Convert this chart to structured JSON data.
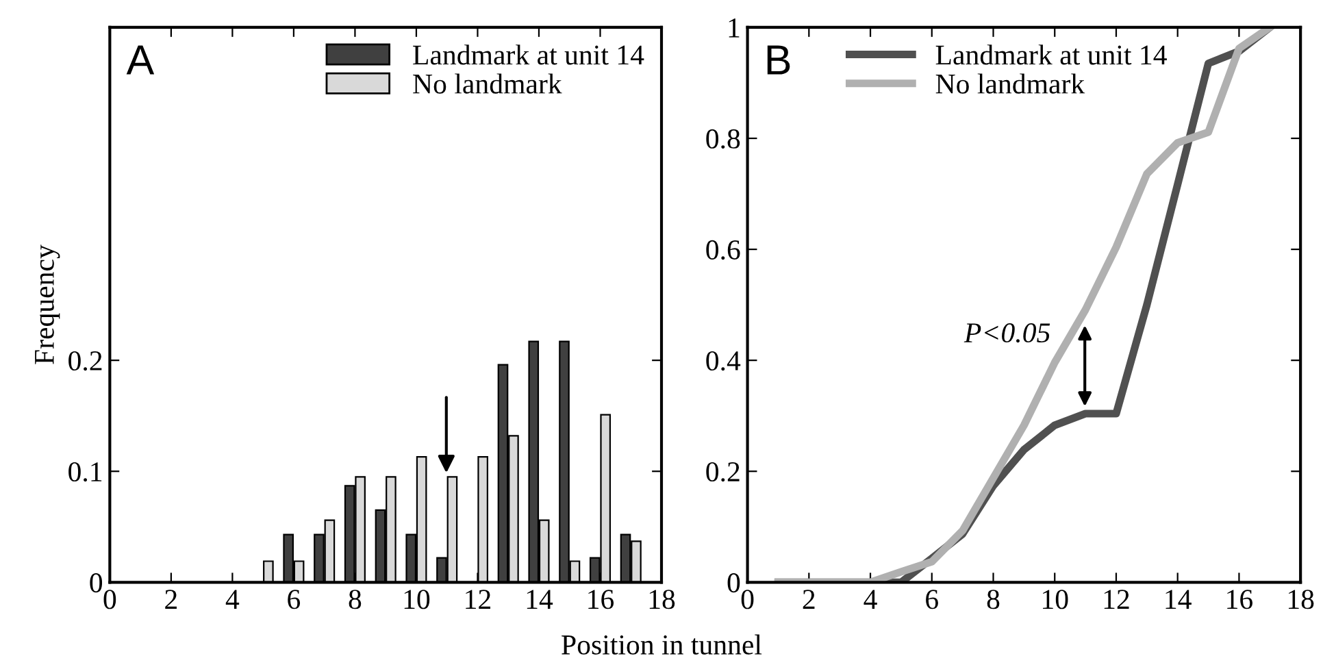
{
  "chart_data": [
    {
      "type": "bar",
      "title": "A",
      "xlabel": "Position in tunnel",
      "ylabel": "Frequency",
      "x": [
        1,
        2,
        3,
        4,
        5,
        6,
        7,
        8,
        9,
        10,
        11,
        12,
        13,
        14,
        15,
        16,
        17
      ],
      "series": [
        {
          "name": "Landmark at unit 14",
          "color": "#404040",
          "values": [
            0,
            0,
            0,
            0,
            0,
            0.043,
            0.043,
            0.087,
            0.065,
            0.043,
            0.022,
            0,
            0.196,
            0.217,
            0.217,
            0.022,
            0.043
          ]
        },
        {
          "name": "No landmark",
          "color": "#d9d9d9",
          "values": [
            0,
            0,
            0,
            0,
            0.019,
            0.019,
            0.056,
            0.095,
            0.095,
            0.113,
            0.095,
            0.113,
            0.132,
            0.056,
            0.019,
            0.151,
            0.037
          ]
        }
      ],
      "xlim": [
        0,
        18
      ],
      "xticks": [
        0,
        2,
        4,
        6,
        8,
        10,
        12,
        14,
        16,
        18
      ],
      "ylim": [
        0,
        0.5
      ],
      "yticks": [
        0,
        0.1,
        0.2
      ],
      "legend": "top right",
      "grid": false
    },
    {
      "type": "line",
      "title": "B",
      "x": [
        1,
        2,
        3,
        4,
        5,
        6,
        7,
        8,
        9,
        10,
        11,
        12,
        13,
        14,
        15,
        16,
        17
      ],
      "series": [
        {
          "name": "Landmark at unit 14",
          "color": "#505050",
          "values": [
            0,
            0,
            0,
            0,
            0,
            0.043,
            0.087,
            0.174,
            0.239,
            0.283,
            0.304,
            0.304,
            0.5,
            0.717,
            0.935,
            0.957,
            1
          ]
        },
        {
          "name": "No landmark",
          "color": "#b0b0b0",
          "values": [
            0,
            0,
            0,
            0,
            0.019,
            0.037,
            0.093,
            0.188,
            0.283,
            0.396,
            0.491,
            0.604,
            0.736,
            0.792,
            0.811,
            0.962,
            1
          ]
        }
      ],
      "annotations": [
        "P<0.05"
      ],
      "xlim": [
        0,
        18
      ],
      "xticks": [
        0,
        2,
        4,
        6,
        8,
        10,
        12,
        14,
        16,
        18
      ],
      "ylim": [
        0,
        1
      ],
      "yticks": [
        0,
        0.2,
        0.4,
        0.6,
        0.8,
        1
      ],
      "legend": "top right",
      "grid": false
    }
  ]
}
